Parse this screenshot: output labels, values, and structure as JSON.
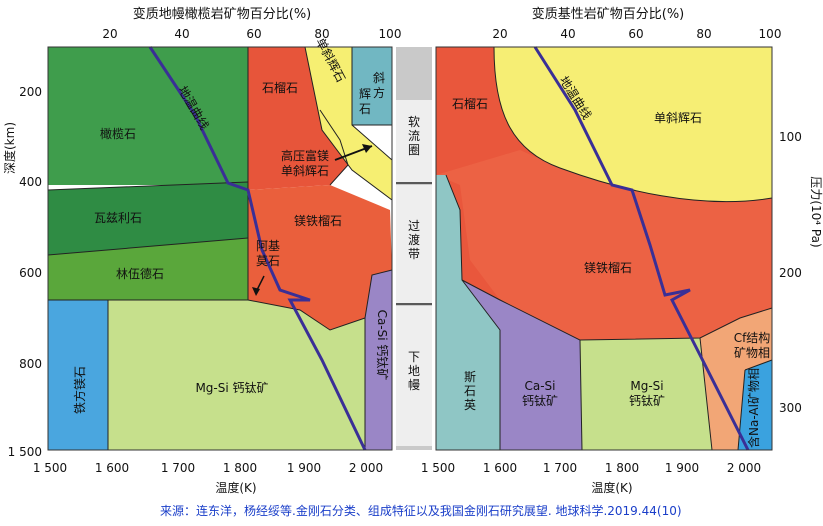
{
  "left_panel": {
    "top_title": "变质地幔橄榄岩矿物百分比(%)",
    "top_ticks": [
      "20",
      "40",
      "60",
      "80",
      "100"
    ],
    "bottom_ticks": [
      "1 500",
      "1 600",
      "1 700",
      "1 800",
      "1 900",
      "2 000"
    ],
    "bottom_label": "温度(K)",
    "left_ticks": [
      "200",
      "400",
      "600",
      "800",
      "1 500"
    ],
    "left_label": "深度(km)",
    "regions": {
      "olivine": "橄榄石",
      "wadsleyite": "瓦兹利石",
      "ringwoodite": "林伍德石",
      "ferropericlase": "铁方镁石",
      "mgsi_perovskite": "Mg-Si 钙钛矿",
      "garnet": "石榴石",
      "hp_cpx": "高压富镁\n单斜辉石",
      "majorite": "镁铁榴石",
      "akimotoite": "阿基\n莫石",
      "cpx": "单斜辉石",
      "opx": "斜方辉石",
      "casi_perovskite": "Ca-Si 钙钛矿",
      "geotherm": "地温曲线"
    }
  },
  "middle_band": {
    "upper": "软流圈",
    "middle": "过渡带",
    "lower": "下地幔"
  },
  "right_panel": {
    "top_title": "变质基性岩矿物百分比(%)",
    "top_ticks": [
      "20",
      "40",
      "60",
      "80",
      "100"
    ],
    "bottom_ticks": [
      "1 500",
      "1 600",
      "1 700",
      "1 800",
      "1 900",
      "2 000"
    ],
    "bottom_label": "温度(K)",
    "right_ticks": [
      "100",
      "200",
      "300"
    ],
    "right_label": "压力(10⁴ Pa)",
    "regions": {
      "garnet": "石榴石",
      "cpx": "单斜辉石",
      "majorite": "镁铁榴石",
      "stishovite": "斯石英",
      "casi_perovskite": "Ca-Si\n钙钛矿",
      "mgsi_perovskite": "Mg-Si\n钙钛矿",
      "cf_phase": "Cf结构\n矿物相",
      "na_al_phase": "含Na-Al\n矿物相",
      "geotherm": "地温曲线"
    }
  },
  "source_text": "来源：连东洋，杨经绥等.金刚石分类、组成特征以及我国金刚石研究展望. 地球科学.2019.44(10)",
  "colors": {
    "olivine": "#3a9a4a",
    "wadsleyite": "#2f8a42",
    "ringwoodite": "#5fa838",
    "ferropericlase": "#4aa6df",
    "mgsi": "#c5e08a",
    "garnet": "#e85a3a",
    "majorite": "#ef6a48",
    "cpx": "#f6ef70",
    "opx": "#6fb6c4",
    "casi": "#9b86c4",
    "stishovite": "#8ec7c6",
    "cf": "#f2a677",
    "naal": "#3aa2df",
    "geotherm": "#3b2f94",
    "band": "#c8c8c8",
    "source": "#1a3ec9"
  }
}
